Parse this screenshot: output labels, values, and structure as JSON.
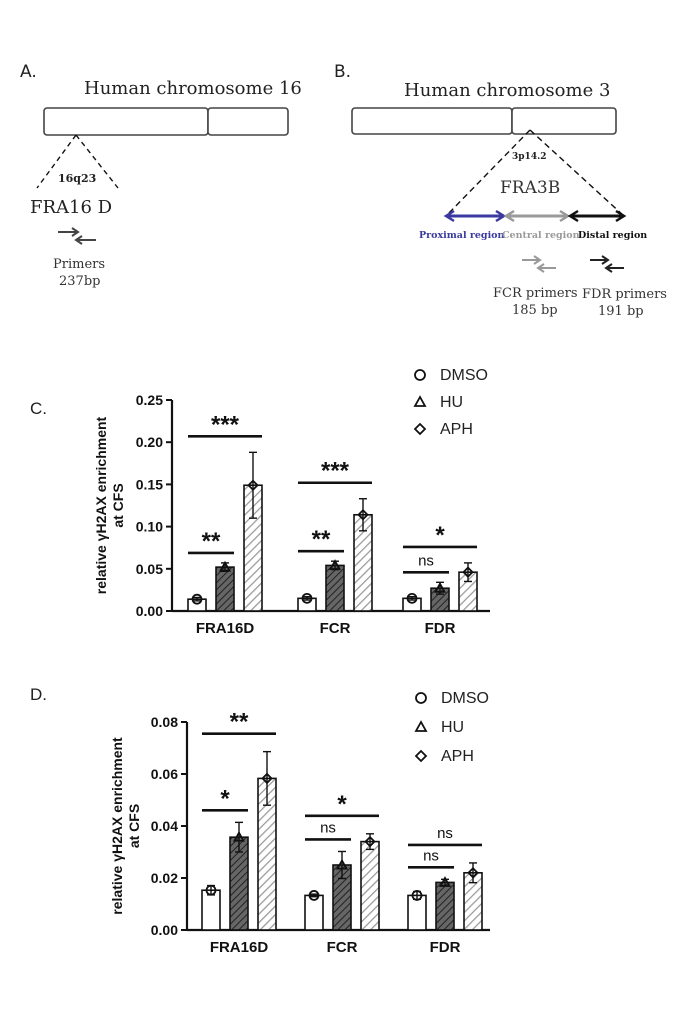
{
  "panelA": {
    "letter": "A.",
    "title": "Human chromosome 16",
    "band": "16q23",
    "site": "FRA16 D",
    "primers_label": "Primers",
    "primers_size": "237bp"
  },
  "panelB": {
    "letter": "B.",
    "title": "Human chromosome 3",
    "band": "3p14.2",
    "site": "FRA3B",
    "regions": [
      "Proximal region",
      "Central region",
      "Distal region"
    ],
    "region_colors": [
      "#3a3aa0",
      "#9a9a9a",
      "#111111"
    ],
    "fcr_label": "FCR primers",
    "fcr_size": "185 bp",
    "fdr_label": "FDR primers",
    "fdr_size": "191 bp"
  },
  "chart_data": [
    {
      "panel": "C.",
      "type": "bar",
      "categories": [
        "FRA16D",
        "FCR",
        "FDR"
      ],
      "ylabel": "relative γH2AX enrichment at CFS",
      "ylim": [
        0,
        0.25
      ],
      "yticks": [
        "0.00",
        "0.05",
        "0.10",
        "0.15",
        "0.20",
        "0.25"
      ],
      "legend": {
        "placement": "top-right",
        "markers": [
          "circle",
          "triangle",
          "diamond"
        ]
      },
      "series": [
        {
          "name": "DMSO",
          "pattern": "white",
          "values": [
            0.014,
            0.015,
            0.015
          ],
          "errors": [
            0.002,
            0.002,
            0.002
          ]
        },
        {
          "name": "HU",
          "pattern": "dark-hatch",
          "values": [
            0.052,
            0.054,
            0.027
          ],
          "errors": [
            0.005,
            0.005,
            0.007
          ]
        },
        {
          "name": "APH",
          "pattern": "light-hatch",
          "values": [
            0.149,
            0.114,
            0.046
          ],
          "errors": [
            0.039,
            0.019,
            0.011
          ]
        }
      ],
      "significance": [
        {
          "group": 0,
          "from": 0,
          "to": 1,
          "label": "**"
        },
        {
          "group": 0,
          "from": 0,
          "to": 2,
          "label": "***"
        },
        {
          "group": 1,
          "from": 0,
          "to": 1,
          "label": "**"
        },
        {
          "group": 1,
          "from": 0,
          "to": 2,
          "label": "***"
        },
        {
          "group": 2,
          "from": 0,
          "to": 1,
          "label": "ns"
        },
        {
          "group": 2,
          "from": 0,
          "to": 2,
          "label": "*"
        }
      ]
    },
    {
      "panel": "D.",
      "type": "bar",
      "categories": [
        "FRA16D",
        "FCR",
        "FDR"
      ],
      "ylabel": "relative γH2AX enrichment at CFS",
      "ylim": [
        0,
        0.08
      ],
      "yticks": [
        "0.00",
        "0.02",
        "0.04",
        "0.06",
        "0.08"
      ],
      "legend": {
        "placement": "top-right",
        "markers": [
          "circle",
          "triangle",
          "diamond"
        ]
      },
      "series": [
        {
          "name": "DMSO",
          "pattern": "white",
          "values": [
            0.0153,
            0.0133,
            0.0133
          ],
          "errors": [
            0.0018,
            0.0005,
            0.0015
          ]
        },
        {
          "name": "HU",
          "pattern": "dark-hatch",
          "values": [
            0.0357,
            0.025,
            0.0183
          ],
          "errors": [
            0.0057,
            0.0052,
            0.0012
          ]
        },
        {
          "name": "APH",
          "pattern": "light-hatch",
          "values": [
            0.0583,
            0.034,
            0.022
          ],
          "errors": [
            0.0103,
            0.003,
            0.0038
          ]
        }
      ],
      "significance": [
        {
          "group": 0,
          "from": 0,
          "to": 1,
          "label": "*"
        },
        {
          "group": 0,
          "from": 0,
          "to": 2,
          "label": "**"
        },
        {
          "group": 1,
          "from": 0,
          "to": 1,
          "label": "ns"
        },
        {
          "group": 1,
          "from": 0,
          "to": 2,
          "label": "*"
        },
        {
          "group": 2,
          "from": 0,
          "to": 1,
          "label": "ns"
        },
        {
          "group": 2,
          "from": 0,
          "to": 2,
          "label": "ns"
        }
      ]
    }
  ]
}
